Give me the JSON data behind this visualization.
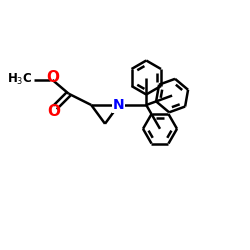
{
  "background": "#ffffff",
  "bond_color": "#000000",
  "N_color": "#0000ff",
  "O_color": "#ff0000",
  "line_width": 1.8,
  "fig_size": [
    2.5,
    2.5
  ],
  "dpi": 100,
  "xlim": [
    0,
    10
  ],
  "ylim": [
    0,
    10
  ]
}
